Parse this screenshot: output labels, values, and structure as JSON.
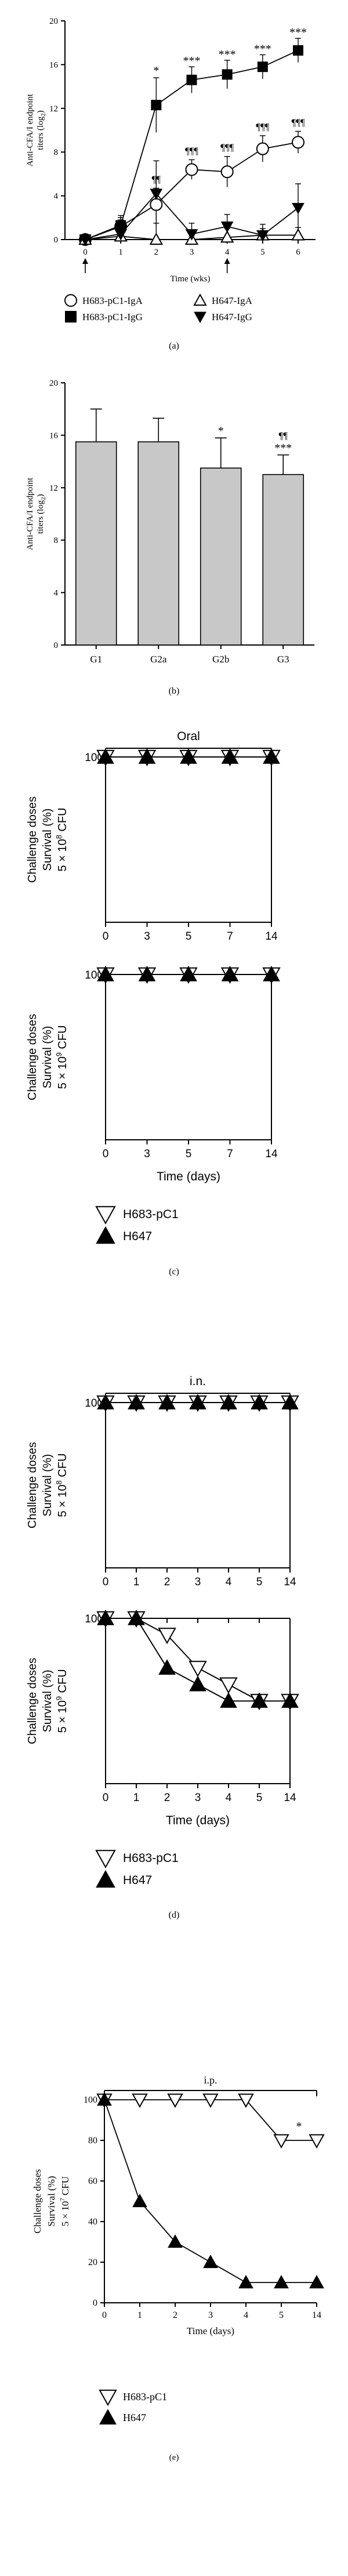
{
  "chart_data": [
    {
      "panel": "(a)",
      "type": "line",
      "ylabel_line1": "Anti-CFA/I endpoint",
      "ylabel_line2": "titers (log",
      "ylabel_sub": "2",
      "ylabel_end": ")",
      "xlabel": "Time (wks)",
      "ylim": [
        0,
        20
      ],
      "yticks": [
        "0",
        "4",
        "8",
        "12",
        "16",
        "20"
      ],
      "xticks": [
        "0",
        "1",
        "2",
        "3",
        "4",
        "5",
        "6"
      ],
      "x": [
        0,
        1,
        2,
        3,
        4,
        5,
        6
      ],
      "series": [
        {
          "name": "H683-pC1-IgA",
          "marker": "circle-open",
          "values": [
            0,
            1.2,
            3.2,
            6.4,
            6.2,
            8.3,
            8.9
          ],
          "errors": [
            0.3,
            0.8,
            1.5,
            0.9,
            1.4,
            1.2,
            1.0
          ]
        },
        {
          "name": "H683-pC1-IgG",
          "marker": "square-filled",
          "values": [
            0,
            1.3,
            12.3,
            14.6,
            15.1,
            15.8,
            17.3
          ],
          "errors": [
            0.3,
            0.9,
            2.5,
            1.2,
            1.3,
            1.1,
            1.1
          ]
        },
        {
          "name": "H647-IgA",
          "marker": "triangle-up-open",
          "values": [
            0,
            0.3,
            0,
            0,
            0.2,
            0.4,
            0.4
          ],
          "errors": [
            0.3,
            1.1,
            1.5,
            0.8,
            0.8,
            0.6,
            0.7
          ]
        },
        {
          "name": "H647-IgG",
          "marker": "triangle-down-filled",
          "values": [
            0,
            0.5,
            4.2,
            0.5,
            1.2,
            0.4,
            2.9
          ],
          "errors": [
            0.3,
            1.3,
            3.0,
            1.0,
            1.1,
            1.0,
            2.2
          ]
        }
      ],
      "annotations": [
        {
          "x": 2,
          "text": "*",
          "above": "H683-pC1-IgG"
        },
        {
          "x": 3,
          "text": "***",
          "above": "H683-pC1-IgG"
        },
        {
          "x": 4,
          "text": "***",
          "above": "H683-pC1-IgG"
        },
        {
          "x": 5,
          "text": "***",
          "above": "H683-pC1-IgG"
        },
        {
          "x": 6,
          "text": "***",
          "above": "H683-pC1-IgG"
        },
        {
          "x": 2,
          "text": "¶¶",
          "above": "H683-pC1-IgA"
        },
        {
          "x": 3,
          "text": "¶¶¶",
          "above": "H683-pC1-IgA"
        },
        {
          "x": 4,
          "text": "¶¶¶",
          "above": "H683-pC1-IgA"
        },
        {
          "x": 5,
          "text": "¶¶¶",
          "above": "H683-pC1-IgA"
        },
        {
          "x": 6,
          "text": "¶¶¶",
          "above": "H683-pC1-IgA"
        }
      ],
      "arrows_at": [
        0,
        4
      ]
    },
    {
      "panel": "(b)",
      "type": "bar",
      "ylabel_line1": "Anti-CFA/I endpoint",
      "ylabel_line2": "titers (log",
      "ylabel_sub": "2",
      "ylabel_end": ")",
      "ylim": [
        0,
        20
      ],
      "yticks": [
        "0",
        "4",
        "8",
        "12",
        "16",
        "20"
      ],
      "categories": [
        "G1",
        "G2a",
        "G2b",
        "G3"
      ],
      "values": [
        15.5,
        15.5,
        13.5,
        13.0
      ],
      "errors": [
        2.5,
        1.8,
        2.3,
        1.5
      ],
      "annotations": [
        {
          "category": "G2b",
          "text": "*"
        },
        {
          "category": "G3",
          "text": "¶¶"
        },
        {
          "category": "G3",
          "text": "***"
        }
      ]
    },
    {
      "panel": "(c)",
      "type": "line",
      "group_label": "Oral",
      "xlabel": "Time (days)",
      "xticks": [
        "0",
        "3",
        "5",
        "7",
        "14"
      ],
      "subplots": [
        {
          "ylabel": [
            "Challenge doses",
            "Survival (%)",
            "5 × 10^8 CFU"
          ],
          "ytick_label": "100",
          "series": [
            {
              "name": "H683-pC1",
              "values": [
                100,
                100,
                100,
                100,
                100
              ]
            },
            {
              "name": "H647",
              "values": [
                100,
                100,
                100,
                100,
                100
              ]
            }
          ]
        },
        {
          "ylabel": [
            "Challenge doses",
            "Survival (%)",
            "5 × 10^9 CFU"
          ],
          "ytick_label": "100",
          "series": [
            {
              "name": "H683-pC1",
              "values": [
                100,
                100,
                100,
                100,
                100
              ]
            },
            {
              "name": "H647",
              "values": [
                100,
                100,
                100,
                100,
                100
              ]
            }
          ]
        }
      ],
      "legend": [
        {
          "name": "H683-pC1",
          "marker": "triangle-down-open"
        },
        {
          "name": "H647",
          "marker": "triangle-up-filled"
        }
      ]
    },
    {
      "panel": "(d)",
      "type": "line",
      "group_label": "i.n.",
      "xlabel": "Time (days)",
      "xticks": [
        "0",
        "1",
        "2",
        "3",
        "4",
        "5",
        "14"
      ],
      "subplots": [
        {
          "ylabel": [
            "Challenge doses",
            "Survival (%)",
            "5 × 10^8 CFU"
          ],
          "ytick_label": "100",
          "series": [
            {
              "name": "H683-pC1",
              "values": [
                100,
                100,
                100,
                100,
                100,
                100,
                100
              ]
            },
            {
              "name": "H647",
              "values": [
                100,
                100,
                100,
                100,
                100,
                100,
                100
              ]
            }
          ]
        },
        {
          "ylabel": [
            "Challenge doses",
            "Survival (%)",
            "5 × 10^9 CFU"
          ],
          "ytick_label": "100",
          "series": [
            {
              "name": "H683-pC1",
              "values": [
                100,
                100,
                90,
                70,
                60,
                50,
                50
              ]
            },
            {
              "name": "H647",
              "values": [
                100,
                100,
                70,
                60,
                50,
                50,
                50
              ]
            }
          ]
        }
      ],
      "legend": [
        {
          "name": "H683-pC1",
          "marker": "triangle-down-open"
        },
        {
          "name": "H647",
          "marker": "triangle-up-filled"
        }
      ]
    },
    {
      "panel": "(e)",
      "type": "line",
      "group_label": "i.p.",
      "xlabel": "Time (days)",
      "ylabel": [
        "Challenge doses",
        "Survival (%)",
        "5 × 10^7 CFU"
      ],
      "ylim": [
        0,
        100
      ],
      "yticks": [
        "0",
        "20",
        "40",
        "60",
        "80",
        "100"
      ],
      "xticks": [
        "0",
        "1",
        "2",
        "3",
        "4",
        "5",
        "14"
      ],
      "series": [
        {
          "name": "H683-pC1",
          "values": [
            100,
            100,
            100,
            100,
            100,
            80,
            80
          ]
        },
        {
          "name": "H647",
          "values": [
            100,
            50,
            30,
            20,
            10,
            10,
            10
          ]
        }
      ],
      "annotations": [
        {
          "x_index": 5.5,
          "text": "*"
        }
      ],
      "legend": [
        {
          "name": "H683-pC1",
          "marker": "triangle-down-open"
        },
        {
          "name": "H647",
          "marker": "triangle-up-filled"
        }
      ]
    }
  ]
}
